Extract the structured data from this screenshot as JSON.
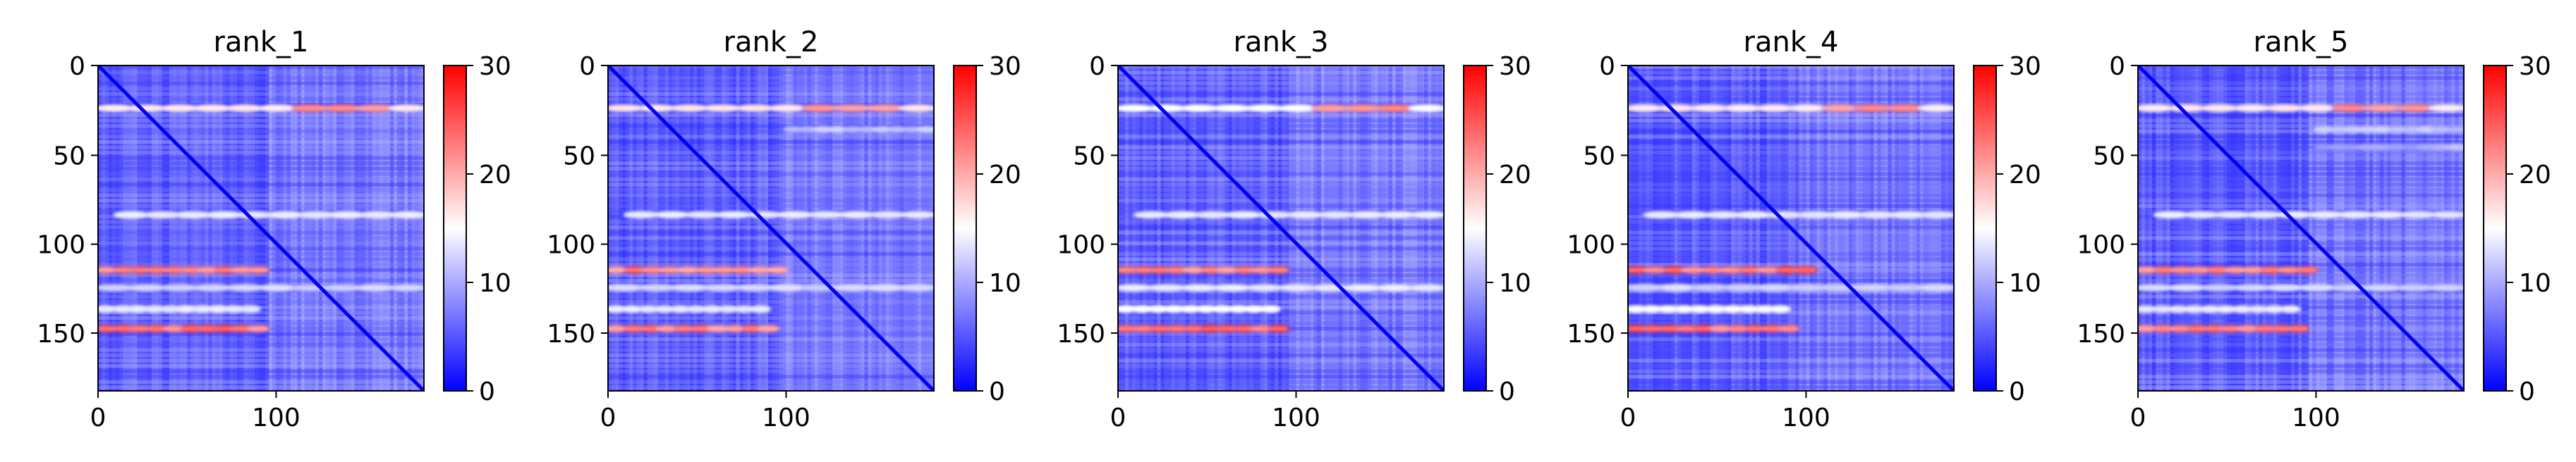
{
  "chart_data": [
    {
      "type": "heatmap",
      "title": "rank_1",
      "n": 183,
      "x_ticks": [
        0,
        100
      ],
      "y_ticks": [
        0,
        50,
        100,
        150
      ],
      "colorbar": {
        "min": 0,
        "max": 30,
        "ticks": [
          0,
          10,
          20,
          30
        ],
        "colormap": "bwr"
      },
      "bands": [
        {
          "row": 24,
          "x0": 0,
          "x1": 183,
          "intensity": 0.55,
          "hot_x0": 100,
          "hot_x1": 175
        },
        {
          "row": 84,
          "x0": 10,
          "x1": 183,
          "intensity": 0.45
        },
        {
          "row": 115,
          "x0": 0,
          "x1": 95,
          "intensity": 0.8
        },
        {
          "row": 125,
          "x0": 0,
          "x1": 183,
          "intensity": 0.4
        },
        {
          "row": 137,
          "x0": 0,
          "x1": 90,
          "intensity": 0.45
        },
        {
          "row": 148,
          "x0": 0,
          "x1": 95,
          "intensity": 0.85
        }
      ]
    },
    {
      "type": "heatmap",
      "title": "rank_2",
      "n": 183,
      "x_ticks": [
        0,
        100
      ],
      "y_ticks": [
        0,
        50,
        100,
        150
      ],
      "colorbar": {
        "min": 0,
        "max": 30,
        "ticks": [
          0,
          10,
          20,
          30
        ],
        "colormap": "bwr"
      },
      "bands": [
        {
          "row": 24,
          "x0": 0,
          "x1": 183,
          "intensity": 0.55,
          "hot_x0": 105,
          "hot_x1": 175
        },
        {
          "row": 36,
          "x0": 100,
          "x1": 183,
          "intensity": 0.35
        },
        {
          "row": 84,
          "x0": 10,
          "x1": 183,
          "intensity": 0.45
        },
        {
          "row": 115,
          "x0": 0,
          "x1": 100,
          "intensity": 0.8
        },
        {
          "row": 125,
          "x0": 0,
          "x1": 183,
          "intensity": 0.4
        },
        {
          "row": 137,
          "x0": 0,
          "x1": 90,
          "intensity": 0.45
        },
        {
          "row": 148,
          "x0": 0,
          "x1": 95,
          "intensity": 0.8
        }
      ]
    },
    {
      "type": "heatmap",
      "title": "rank_3",
      "n": 183,
      "x_ticks": [
        0,
        100
      ],
      "y_ticks": [
        0,
        50,
        100,
        150
      ],
      "colorbar": {
        "min": 0,
        "max": 30,
        "ticks": [
          0,
          10,
          20,
          30
        ],
        "colormap": "bwr"
      },
      "bands": [
        {
          "row": 24,
          "x0": 0,
          "x1": 183,
          "intensity": 0.5,
          "hot_x0": 100,
          "hot_x1": 175
        },
        {
          "row": 84,
          "x0": 10,
          "x1": 183,
          "intensity": 0.45
        },
        {
          "row": 115,
          "x0": 0,
          "x1": 95,
          "intensity": 0.8
        },
        {
          "row": 125,
          "x0": 0,
          "x1": 183,
          "intensity": 0.45
        },
        {
          "row": 137,
          "x0": 0,
          "x1": 90,
          "intensity": 0.5
        },
        {
          "row": 148,
          "x0": 0,
          "x1": 95,
          "intensity": 0.85
        }
      ]
    },
    {
      "type": "heatmap",
      "title": "rank_4",
      "n": 183,
      "x_ticks": [
        0,
        100
      ],
      "y_ticks": [
        0,
        50,
        100,
        150
      ],
      "colorbar": {
        "min": 0,
        "max": 30,
        "ticks": [
          0,
          10,
          20,
          30
        ],
        "colormap": "bwr"
      },
      "bands": [
        {
          "row": 24,
          "x0": 0,
          "x1": 183,
          "intensity": 0.55,
          "hot_x0": 100,
          "hot_x1": 175
        },
        {
          "row": 84,
          "x0": 10,
          "x1": 183,
          "intensity": 0.45
        },
        {
          "row": 115,
          "x0": 0,
          "x1": 105,
          "intensity": 0.85
        },
        {
          "row": 125,
          "x0": 0,
          "x1": 183,
          "intensity": 0.4
        },
        {
          "row": 137,
          "x0": 0,
          "x1": 90,
          "intensity": 0.5
        },
        {
          "row": 148,
          "x0": 0,
          "x1": 95,
          "intensity": 0.85
        }
      ]
    },
    {
      "type": "heatmap",
      "title": "rank_5",
      "n": 183,
      "x_ticks": [
        0,
        100
      ],
      "y_ticks": [
        0,
        50,
        100,
        150
      ],
      "colorbar": {
        "min": 0,
        "max": 30,
        "ticks": [
          0,
          10,
          20,
          30
        ],
        "colormap": "bwr"
      },
      "bands": [
        {
          "row": 24,
          "x0": 0,
          "x1": 183,
          "intensity": 0.55,
          "hot_x0": 100,
          "hot_x1": 175
        },
        {
          "row": 36,
          "x0": 100,
          "x1": 183,
          "intensity": 0.35
        },
        {
          "row": 46,
          "x0": 100,
          "x1": 183,
          "intensity": 0.3
        },
        {
          "row": 84,
          "x0": 10,
          "x1": 183,
          "intensity": 0.45
        },
        {
          "row": 115,
          "x0": 0,
          "x1": 100,
          "intensity": 0.8
        },
        {
          "row": 125,
          "x0": 0,
          "x1": 183,
          "intensity": 0.4
        },
        {
          "row": 137,
          "x0": 0,
          "x1": 90,
          "intensity": 0.45
        },
        {
          "row": 148,
          "x0": 0,
          "x1": 95,
          "intensity": 0.8
        }
      ]
    }
  ]
}
